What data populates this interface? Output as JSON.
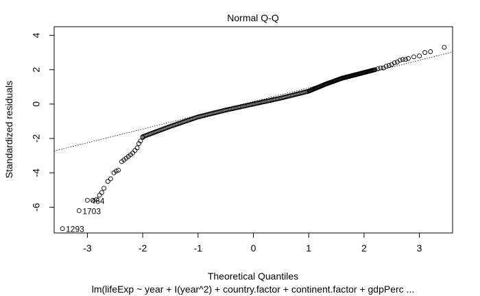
{
  "chart_data": {
    "type": "scatter",
    "title": "Normal Q-Q",
    "xlabel": "Theoretical Quantiles",
    "ylabel": "Standardized residuals",
    "subtitle": "lm(lifeExp ~ year + I(year^2) + country.factor + continent.factor + gdpPerc ...",
    "xlim": [
      -3.6,
      3.6
    ],
    "ylim": [
      -7.5,
      4.5
    ],
    "x_ticks": [
      -3,
      -2,
      -1,
      0,
      1,
      2,
      3
    ],
    "y_ticks": [
      -6,
      -4,
      -2,
      0,
      2,
      4
    ],
    "grid": false,
    "reference_line": {
      "slope": 0.8,
      "intercept": 0.15,
      "style": "dotted"
    },
    "labeled_points": [
      {
        "label": "1293",
        "x": -3.45,
        "y": -7.25
      },
      {
        "label": "1703",
        "x": -3.15,
        "y": -6.2
      },
      {
        "label": "464",
        "x": -3.0,
        "y": -5.6
      }
    ],
    "tail_points": [
      [
        -3.45,
        -7.25
      ],
      [
        -3.15,
        -6.2
      ],
      [
        -3.0,
        -5.6
      ],
      [
        -2.9,
        -5.6
      ],
      [
        -2.83,
        -5.55
      ],
      [
        -2.78,
        -5.3
      ],
      [
        -2.74,
        -5.15
      ],
      [
        -2.7,
        -4.9
      ],
      [
        -2.63,
        -4.5
      ],
      [
        -2.58,
        -4.35
      ],
      [
        -2.52,
        -4.0
      ],
      [
        -2.48,
        -3.9
      ],
      [
        -2.44,
        -3.85
      ],
      [
        -2.38,
        -3.35
      ],
      [
        -2.34,
        -3.25
      ],
      [
        -2.3,
        -3.15
      ],
      [
        -2.26,
        -3.05
      ],
      [
        -2.22,
        -2.95
      ],
      [
        -2.18,
        -2.85
      ],
      [
        -2.14,
        -2.7
      ],
      [
        -2.1,
        -2.55
      ],
      [
        -2.07,
        -2.3
      ],
      [
        -2.04,
        -2.15
      ],
      [
        -2.0,
        -1.95
      ],
      [
        2.2,
        2.0
      ],
      [
        2.25,
        2.05
      ],
      [
        2.3,
        2.1
      ],
      [
        2.35,
        2.1
      ],
      [
        2.4,
        2.2
      ],
      [
        2.45,
        2.25
      ],
      [
        2.5,
        2.3
      ],
      [
        2.55,
        2.4
      ],
      [
        2.6,
        2.45
      ],
      [
        2.65,
        2.55
      ],
      [
        2.7,
        2.6
      ],
      [
        2.75,
        2.6
      ],
      [
        2.8,
        2.65
      ],
      [
        2.9,
        2.75
      ],
      [
        3.0,
        2.8
      ],
      [
        3.1,
        3.0
      ],
      [
        3.2,
        3.05
      ],
      [
        3.45,
        3.3
      ]
    ],
    "body_curve": [
      [
        -2.0,
        -1.9
      ],
      [
        -1.5,
        -1.3
      ],
      [
        -1.0,
        -0.75
      ],
      [
        -0.5,
        -0.35
      ],
      [
        0.0,
        0.0
      ],
      [
        0.5,
        0.35
      ],
      [
        1.0,
        0.75
      ],
      [
        1.3,
        1.15
      ],
      [
        1.6,
        1.5
      ],
      [
        1.9,
        1.75
      ],
      [
        2.2,
        2.0
      ]
    ]
  }
}
